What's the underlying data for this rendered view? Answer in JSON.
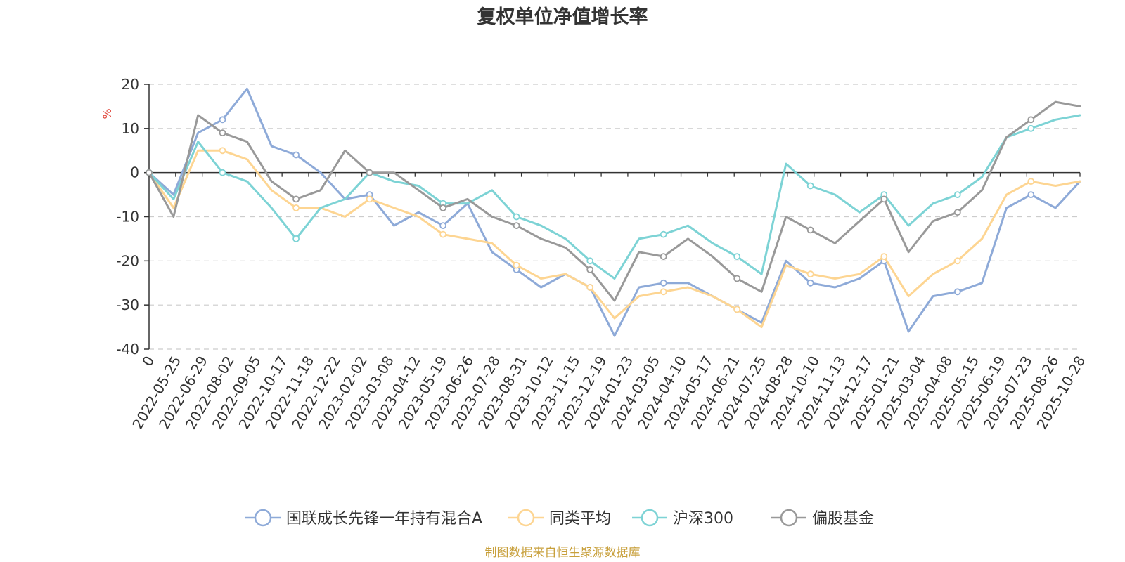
{
  "chart_data": {
    "type": "line",
    "title": "复权单位净值增长率",
    "ylabel": "%",
    "ylim": [
      -40,
      20
    ],
    "yticks": [
      20,
      10,
      0,
      -10,
      -20,
      -30,
      -40
    ],
    "x_tick_labels": [
      "0",
      "2022-05-25",
      "2022-06-29",
      "2022-08-02",
      "2022-09-05",
      "2022-10-17",
      "2022-11-18",
      "2022-12-22",
      "2023-02-02",
      "2023-03-08",
      "2023-04-12",
      "2023-05-19",
      "2023-06-26",
      "2023-07-28",
      "2023-08-31",
      "2023-10-12",
      "2023-11-15",
      "2023-12-19",
      "2024-01-23",
      "2024-03-05",
      "2024-04-10",
      "2024-05-17",
      "2024-06-21",
      "2024-07-25",
      "2024-08-28",
      "2024-10-10",
      "2024-11-13",
      "2024-12-17",
      "2025-01-21",
      "2025-03-04",
      "2025-04-08",
      "2025-05-15",
      "2025-06-19",
      "2025-07-23",
      "2025-08-26",
      "2025-10-28"
    ],
    "grid": "horizontal dashed",
    "legend_position": "bottom-center",
    "series": [
      {
        "name": "国联成长先锋一年持有混合A",
        "color": "#8eaad8",
        "values": [
          0,
          -5,
          9,
          12,
          19,
          6,
          4,
          0,
          -6,
          -5,
          -12,
          -9,
          -12,
          -7,
          -18,
          -22,
          -26,
          -23,
          -26,
          -37,
          -26,
          -25,
          -25,
          -28,
          -31,
          -34,
          -20,
          -25,
          -26,
          -24,
          -20,
          -36,
          -28,
          -27,
          -25,
          -8,
          -5,
          -8,
          -2
        ]
      },
      {
        "name": "同类平均",
        "color": "#fdd592",
        "values": [
          0,
          -8,
          5,
          5,
          3,
          -4,
          -8,
          -8,
          -10,
          -6,
          -8,
          -10,
          -14,
          -15,
          -16,
          -21,
          -24,
          -23,
          -26,
          -33,
          -28,
          -27,
          -26,
          -28,
          -31,
          -35,
          -21,
          -23,
          -24,
          -23,
          -19,
          -28,
          -23,
          -20,
          -15,
          -5,
          -2,
          -3,
          -2
        ]
      },
      {
        "name": "沪深300",
        "color": "#7dd3d5",
        "values": [
          0,
          -6,
          7,
          0,
          -2,
          -8,
          -15,
          -8,
          -6,
          0,
          -2,
          -3,
          -7,
          -7,
          -4,
          -10,
          -12,
          -15,
          -20,
          -24,
          -15,
          -14,
          -12,
          -16,
          -19,
          -23,
          2,
          -3,
          -5,
          -9,
          -5,
          -12,
          -7,
          -5,
          -1,
          8,
          10,
          12,
          13
        ]
      },
      {
        "name": "偏股基金",
        "color": "#999999",
        "values": [
          0,
          -10,
          13,
          9,
          7,
          -2,
          -6,
          -4,
          5,
          0,
          0,
          -4,
          -8,
          -6,
          -10,
          -12,
          -15,
          -17,
          -22,
          -29,
          -18,
          -19,
          -15,
          -19,
          -24,
          -27,
          -10,
          -13,
          -16,
          -11,
          -6,
          -18,
          -11,
          -9,
          -4,
          8,
          12,
          16,
          15
        ]
      }
    ]
  },
  "legend_items": [
    "国联成长先锋一年持有混合A",
    "同类平均",
    "沪深300",
    "偏股基金"
  ],
  "footer": "制图数据来自恒生聚源数据库"
}
